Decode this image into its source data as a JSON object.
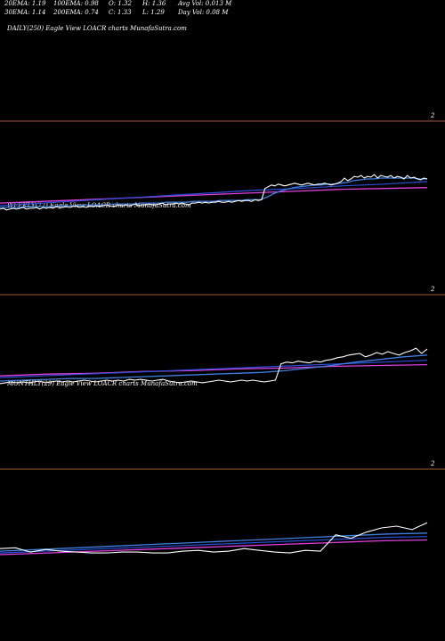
{
  "header": {
    "row1": [
      "20EMA: 1.19",
      "100EMA: 0.98",
      "O: 1.32",
      "H: 1.36",
      "Avg Vol: 0.013 M"
    ],
    "row2": [
      "30EMA: 1.14",
      "200EMA: 0.74",
      "C: 1.33",
      "L: 1.29",
      "Day Vol: 0.08 M"
    ]
  },
  "colors": {
    "price": "#ffffff",
    "ema_blue": "#3f7fe0",
    "ema_navy": "#2b4fd8",
    "ema_magenta": "#e040e0",
    "ref_line": "#a05a2c"
  },
  "chart_data": [
    {
      "type": "line",
      "label": "DAILY(250) Eagle  View  LOACR charts MunafaSutra.com",
      "ref_label": "2",
      "series": [
        {
          "name": "price",
          "values": [
            0.98,
            0.99,
            0.97,
            0.98,
            0.99,
            0.98,
            0.99,
            1.0,
            0.98,
            0.99,
            0.99,
            1.0,
            0.98,
            1.0,
            0.99,
            1.0,
            0.99,
            1.01,
            1.0,
            1.0,
            1.01,
            1.0,
            1.01,
            1.02,
            1.0,
            1.01,
            1.0,
            1.02,
            1.01,
            1.02,
            1.01,
            1.02,
            1.03,
            1.02,
            1.01,
            1.02,
            1.03,
            1.02,
            1.03,
            1.02,
            1.03,
            1.04,
            1.02,
            1.03,
            1.03,
            1.04,
            1.03,
            1.03,
            1.04,
            1.05,
            1.03,
            1.04,
            1.04,
            1.05,
            1.04,
            1.05,
            1.04,
            1.03,
            1.05,
            1.05,
            1.06,
            1.05,
            1.06,
            1.05,
            1.06,
            1.06,
            1.07,
            1.06,
            1.06,
            1.07,
            1.06,
            1.07,
            1.08,
            1.07,
            1.08,
            1.08,
            1.07,
            1.09,
            1.08,
            1.09,
            1.22,
            1.24,
            1.26,
            1.25,
            1.27,
            1.26,
            1.25,
            1.26,
            1.27,
            1.28,
            1.27,
            1.26,
            1.27,
            1.28,
            1.27,
            1.26,
            1.27,
            1.27,
            1.28,
            1.27,
            1.26,
            1.27,
            1.28,
            1.3,
            1.34,
            1.31,
            1.33,
            1.36,
            1.35,
            1.37,
            1.34,
            1.36,
            1.35,
            1.38,
            1.34,
            1.37,
            1.36,
            1.35,
            1.37,
            1.34,
            1.36,
            1.35,
            1.33,
            1.37,
            1.34,
            1.35,
            1.33,
            1.32,
            1.34,
            1.33
          ]
        },
        {
          "name": "ema_fast",
          "values": [
            1.0,
            1.0,
            1.0,
            1.0,
            1.01,
            1.01,
            1.01,
            1.01,
            1.01,
            1.02,
            1.02,
            1.02,
            1.02,
            1.03,
            1.03,
            1.03,
            1.03,
            1.04,
            1.04,
            1.04,
            1.04,
            1.05,
            1.05,
            1.05,
            1.05,
            1.06,
            1.06,
            1.06,
            1.06,
            1.07,
            1.07,
            1.07,
            1.07,
            1.08,
            1.08,
            1.08,
            1.08,
            1.09,
            1.09,
            1.09,
            1.12,
            1.16,
            1.19,
            1.21,
            1.23,
            1.24,
            1.25,
            1.26,
            1.26,
            1.27,
            1.27,
            1.28,
            1.29,
            1.31,
            1.32,
            1.33,
            1.33,
            1.34,
            1.34,
            1.34,
            1.34,
            1.34,
            1.34,
            1.33,
            1.33
          ]
        },
        {
          "name": "ema_mid",
          "values": [
            1.02,
            1.05,
            1.08,
            1.11,
            1.14,
            1.17,
            1.2,
            1.22,
            1.25,
            1.27,
            1.3
          ]
        },
        {
          "name": "ema_slow",
          "values": [
            1.05,
            1.07,
            1.09,
            1.11,
            1.13,
            1.15,
            1.17,
            1.19,
            1.21,
            1.22,
            1.23
          ]
        }
      ],
      "ylim": [
        0.85,
        2.05
      ]
    },
    {
      "type": "line",
      "label": "WEEKLY(77) Eagle  View  LOACR charts MunafaSutra.com",
      "ref_label": "2",
      "series": [
        {
          "name": "price",
          "values": [
            0.97,
            0.98,
            0.99,
            0.98,
            0.99,
            0.98,
            0.99,
            1.0,
            0.98,
            0.99,
            1.0,
            0.99,
            1.0,
            0.99,
            1.0,
            1.01,
            1.0,
            0.99,
            1.0,
            1.01,
            1.0,
            1.01,
            1.0,
            1.02,
            1.01,
            1.02,
            1.01,
            1.0,
            1.01,
            1.02,
            1.0,
            0.99,
            0.98,
            0.99,
            1.0,
            0.99,
            0.98,
            0.99,
            1.0,
            1.01,
            1.0,
            0.99,
            1.0,
            1.01,
            1.0,
            1.01,
            1.0,
            0.99,
            1.0,
            1.01,
            1.2,
            1.22,
            1.21,
            1.23,
            1.22,
            1.21,
            1.23,
            1.22,
            1.24,
            1.25,
            1.27,
            1.28,
            1.3,
            1.31,
            1.32,
            1.28,
            1.3,
            1.33,
            1.31,
            1.34,
            1.32,
            1.3,
            1.33,
            1.35,
            1.38,
            1.32,
            1.37
          ]
        },
        {
          "name": "ema_fast",
          "values": [
            1.0,
            1.01,
            1.02,
            1.03,
            1.03,
            1.04,
            1.05,
            1.06,
            1.07,
            1.08,
            1.09,
            1.1,
            1.12,
            1.15,
            1.18,
            1.22,
            1.25,
            1.28,
            1.3
          ]
        },
        {
          "name": "ema_mid",
          "values": [
            1.04,
            1.06,
            1.08,
            1.1,
            1.12,
            1.14,
            1.16,
            1.18,
            1.2,
            1.22,
            1.24
          ]
        },
        {
          "name": "ema_slow",
          "values": [
            1.06,
            1.08,
            1.09,
            1.11,
            1.12,
            1.14,
            1.15,
            1.17,
            1.18,
            1.19
          ]
        }
      ],
      "ylim": [
        0.85,
        2.05
      ]
    },
    {
      "type": "line",
      "label": "MONTHLY(29) Eagle  View  LOACR charts MunafaSutra.com",
      "ref_label": "2",
      "series": [
        {
          "name": "price",
          "values": [
            1.08,
            1.09,
            1.04,
            1.07,
            1.05,
            1.04,
            1.03,
            1.03,
            1.04,
            1.04,
            1.03,
            1.03,
            1.05,
            1.06,
            1.04,
            1.05,
            1.08,
            1.06,
            1.04,
            1.03,
            1.06,
            1.05,
            1.24,
            1.2,
            1.27,
            1.32,
            1.34,
            1.3,
            1.38
          ]
        },
        {
          "name": "ema_fast",
          "values": [
            1.05,
            1.07,
            1.09,
            1.11,
            1.13,
            1.15,
            1.17,
            1.19,
            1.21,
            1.23,
            1.25,
            1.26
          ]
        },
        {
          "name": "ema_mid",
          "values": [
            1.03,
            1.05,
            1.07,
            1.09,
            1.11,
            1.13,
            1.15,
            1.17,
            1.19,
            1.21,
            1.22
          ]
        },
        {
          "name": "ema_slow",
          "values": [
            1.01,
            1.03,
            1.05,
            1.07,
            1.09,
            1.11,
            1.13,
            1.15,
            1.17,
            1.18
          ]
        }
      ],
      "ylim": [
        0.85,
        2.05
      ]
    }
  ]
}
